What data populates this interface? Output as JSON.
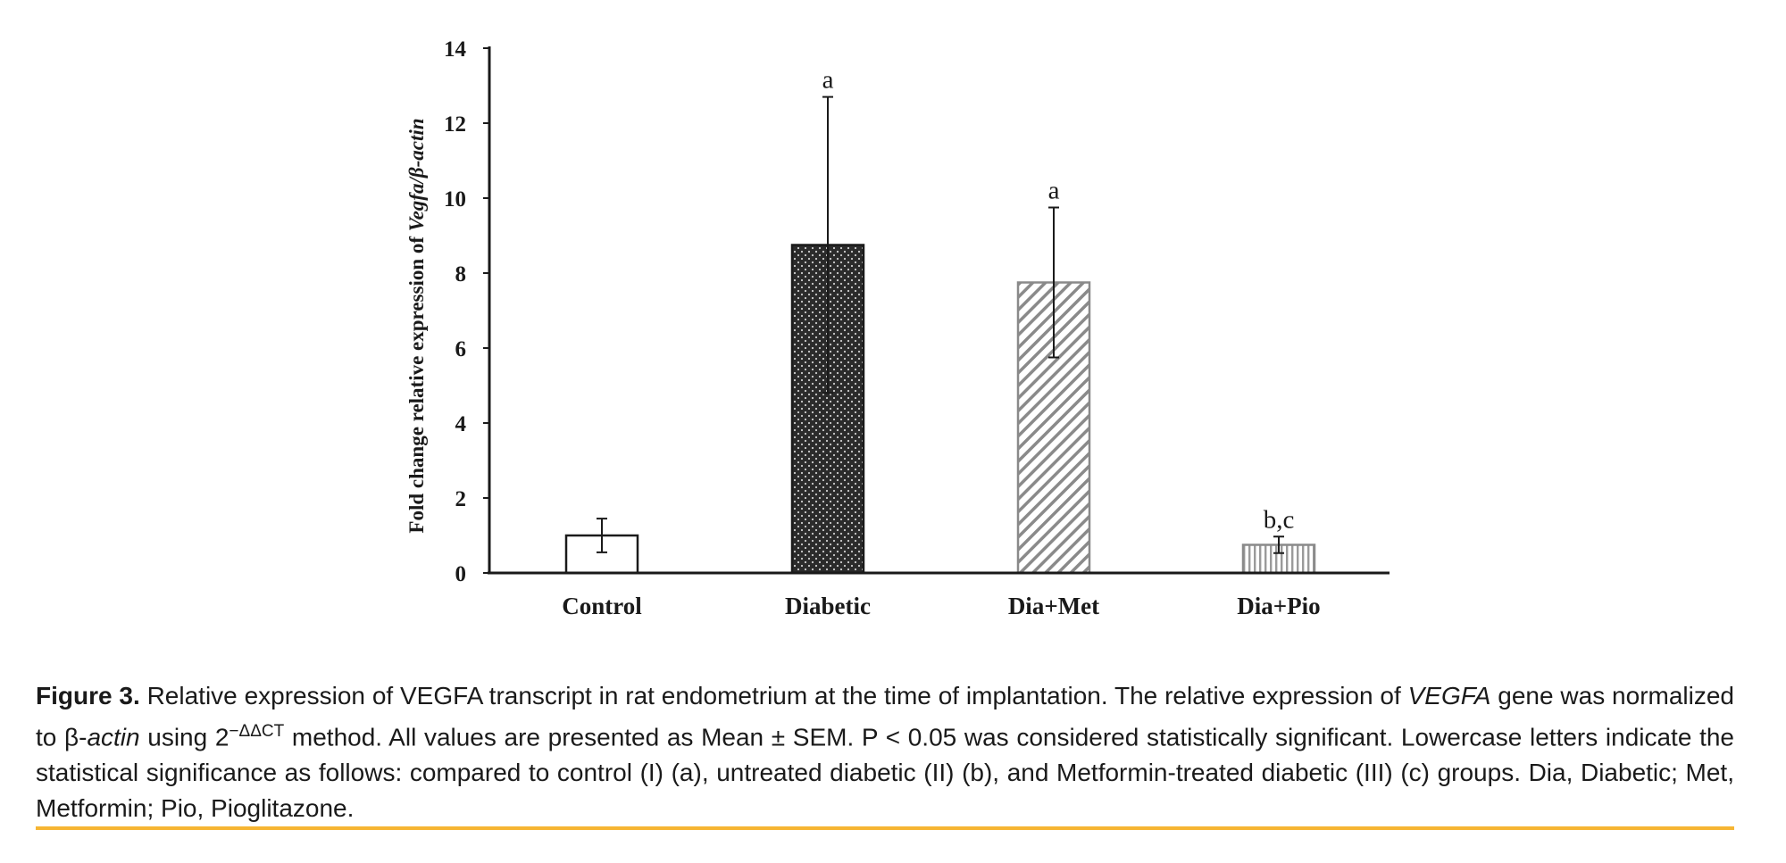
{
  "chart_data": {
    "type": "bar",
    "categories": [
      "Control",
      "Diabetic",
      "Dia+Met",
      "Dia+Pio"
    ],
    "values": [
      1.0,
      8.75,
      7.75,
      0.75
    ],
    "errors": [
      0.45,
      3.95,
      2.0,
      0.22
    ],
    "significance_labels": [
      "",
      "a",
      "a",
      "b,c"
    ],
    "ylabel_prefix": "Fold change relative expression of ",
    "ylabel_gene": "Vegfa/β-actin",
    "ylim": [
      0,
      14
    ],
    "yticks": [
      "0",
      "2",
      "4",
      "6",
      "8",
      "10",
      "12",
      "14"
    ],
    "fills": [
      "hollow",
      "dotted-dark",
      "diagonal-hatch",
      "vertical-hatch"
    ],
    "grid": false,
    "bar_color": "#1a1a1a"
  },
  "caption": {
    "label": "Figure 3.",
    "sentence1": " Relative expression of VEGFA transcript in rat endometrium at the time of implantation. The relative expression of ",
    "gene_italic": "VEGFA",
    "sentence2": " gene was normalized to β-",
    "actin_italic": "actin",
    "sentence3": " using 2",
    "superscript": "−ΔΔCT",
    "sentence4": " method. All values are presented as Mean ± SEM. P < 0.05 was considered statistically significant. Lowercase letters indicate the statistical significance as follows: compared to control (I) (a), untreated diabetic (II) (b), and Metformin-treated diabetic (III) (c) groups. Dia, Diabetic; Met, Metformin; Pio, Pioglitazone."
  },
  "colors": {
    "rule": "#f6b533",
    "text": "#1a1a1a"
  }
}
